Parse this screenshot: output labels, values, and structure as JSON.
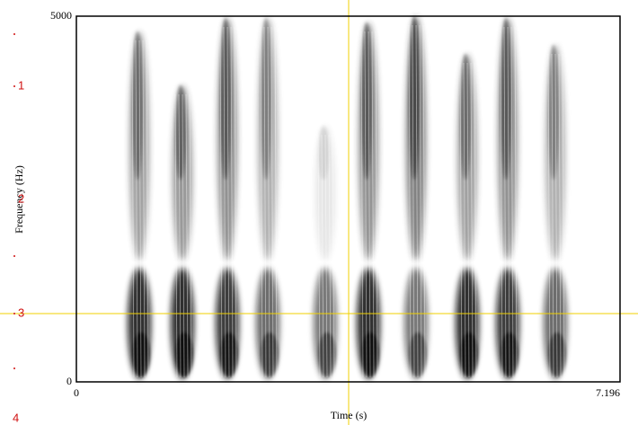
{
  "plot": {
    "y_axis": {
      "title": "Frequency (Hz)",
      "top_label": "5000",
      "bottom_label": "0"
    },
    "x_axis": {
      "title": "Time (s)",
      "left_label": "0",
      "right_label": "7.196"
    }
  },
  "tier_markers": [
    "1",
    "2",
    "3",
    "4"
  ]
}
